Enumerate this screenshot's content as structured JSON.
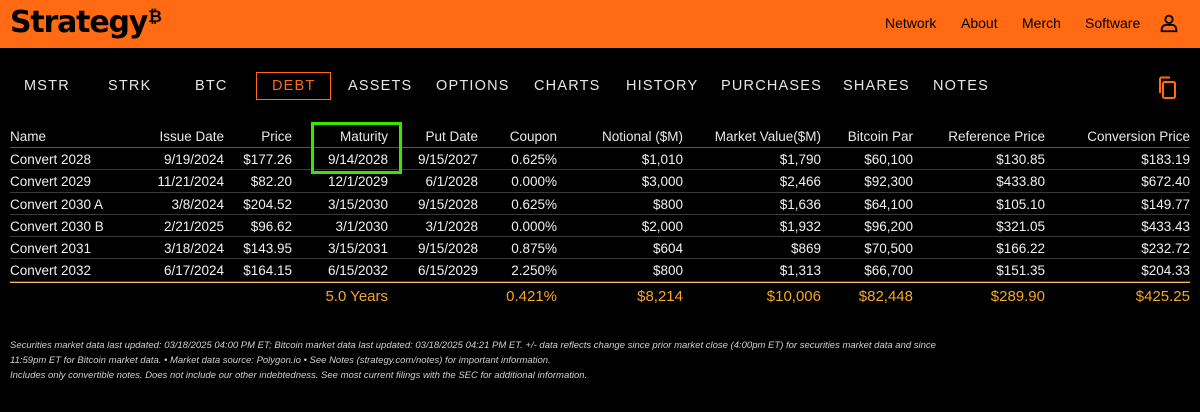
{
  "header": {
    "logo_text": "Strategy",
    "logo_symbol": "₿",
    "nav": [
      "Network",
      "About",
      "Merch",
      "Software"
    ]
  },
  "tabs": [
    "MSTR",
    "STRK",
    "BTC",
    "DEBT",
    "ASSETS",
    "OPTIONS",
    "CHARTS",
    "HISTORY",
    "PURCHASES",
    "SHARES",
    "NOTES"
  ],
  "active_tab": "DEBT",
  "table": {
    "columns": [
      "Name",
      "Issue Date",
      "Price",
      "Maturity",
      "Put Date",
      "Coupon",
      "Notional ($M)",
      "Market Value($M)",
      "Bitcoin Par",
      "Reference Price",
      "Conversion Price"
    ],
    "rows": [
      [
        "Convert 2028",
        "9/19/2024",
        "$177.26",
        "9/14/2028",
        "9/15/2027",
        "0.625%",
        "$1,010",
        "$1,790",
        "$60,100",
        "$130.85",
        "$183.19"
      ],
      [
        "Convert 2029",
        "11/21/2024",
        "$82.20",
        "12/1/2029",
        "6/1/2028",
        "0.000%",
        "$3,000",
        "$2,466",
        "$92,300",
        "$433.80",
        "$672.40"
      ],
      [
        "Convert 2030 A",
        "3/8/2024",
        "$204.52",
        "3/15/2030",
        "9/15/2028",
        "0.625%",
        "$800",
        "$1,636",
        "$64,100",
        "$105.10",
        "$149.77"
      ],
      [
        "Convert 2030 B",
        "2/21/2025",
        "$96.62",
        "3/1/2030",
        "3/1/2028",
        "0.000%",
        "$2,000",
        "$1,932",
        "$96,200",
        "$321.05",
        "$433.43"
      ],
      [
        "Convert 2031",
        "3/18/2024",
        "$143.95",
        "3/15/2031",
        "9/15/2028",
        "0.875%",
        "$604",
        "$869",
        "$70,500",
        "$166.22",
        "$232.72"
      ],
      [
        "Convert 2032",
        "6/17/2024",
        "$164.15",
        "6/15/2032",
        "6/15/2029",
        "2.250%",
        "$800",
        "$1,313",
        "$66,700",
        "$151.35",
        "$204.33"
      ]
    ],
    "totals": {
      "maturity": "5.0 Years",
      "coupon": "0.421%",
      "notional": "$8,214",
      "market_value": "$10,006",
      "bitcoin_par": "$82,448",
      "reference_price": "$289.90",
      "conversion_price": "$425.25"
    }
  },
  "footnotes": [
    "Securities market data last updated: 03/18/2025 04:00 PM ET; Bitcoin market data last updated: 03/18/2025 04:21 PM ET. +/- data reflects change since prior market close (4:00pm ET) for securities market data and since",
    "11:59pm ET for Bitcoin market data.  •  Market data source: Polygon.io  •  See Notes (strategy.com/notes) for important information.",
    "Includes only convertible notes. Does not include our other indebtedness. See most current filings with the SEC for additional information."
  ],
  "colors": {
    "brand_orange": "#ff6a13",
    "totals_gold": "#f5a623",
    "highlight_green": "#39e600"
  }
}
